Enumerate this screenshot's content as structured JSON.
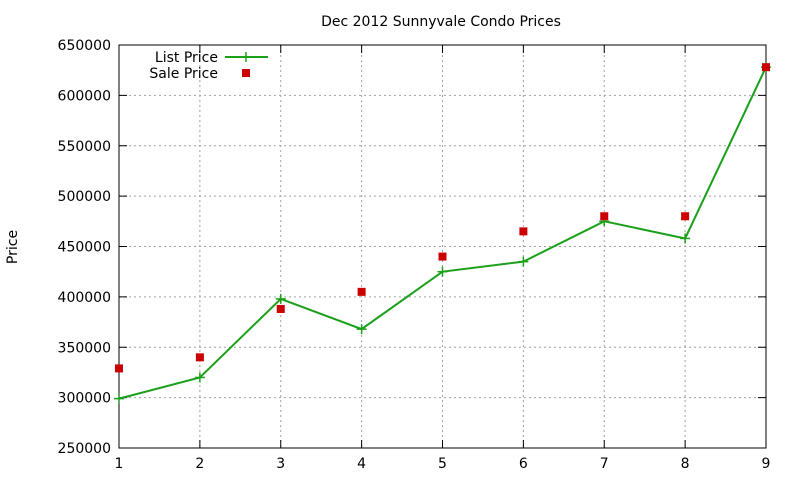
{
  "chart_data": {
    "type": "line",
    "title": "Dec 2012 Sunnyvale Condo Prices",
    "xlabel": "",
    "ylabel": "Price",
    "x": [
      1,
      2,
      3,
      4,
      5,
      6,
      7,
      8,
      9
    ],
    "xlim": [
      1,
      9
    ],
    "ylim": [
      250000,
      650000
    ],
    "xticks": [
      "1",
      "2",
      "3",
      "4",
      "5",
      "6",
      "7",
      "8",
      "9"
    ],
    "yticks": [
      "250000",
      "300000",
      "350000",
      "400000",
      "450000",
      "500000",
      "550000",
      "600000",
      "650000"
    ],
    "grid": true,
    "legend_position": "top-left",
    "series": [
      {
        "name": "List Price",
        "kind": "line",
        "marker": "plus",
        "color": "#1aa01a",
        "values": [
          299000,
          320000,
          398000,
          368000,
          425000,
          435000,
          475000,
          458000,
          628000
        ]
      },
      {
        "name": "Sale Price",
        "kind": "scatter",
        "marker": "square",
        "color": "#cc0000",
        "values": [
          329000,
          340000,
          388000,
          405000,
          440000,
          465000,
          480000,
          480000,
          628000
        ]
      }
    ]
  }
}
